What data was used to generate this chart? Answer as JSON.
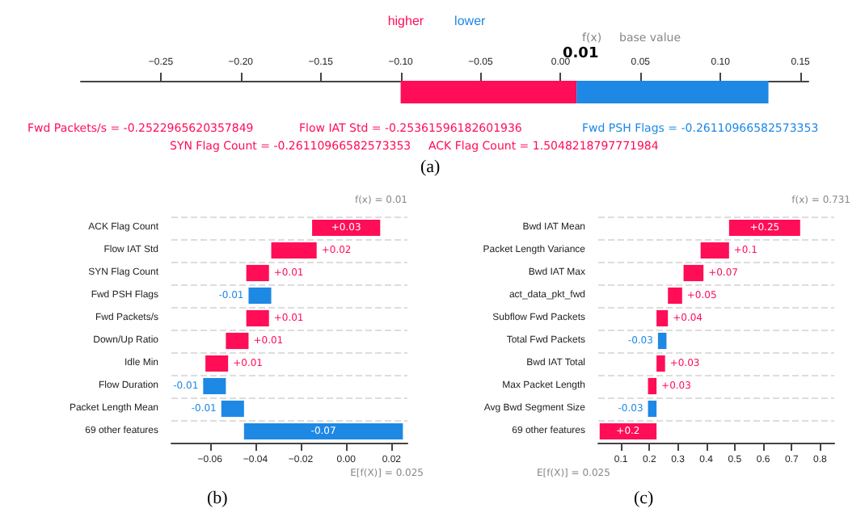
{
  "chart_data": [
    {
      "type": "bar",
      "orientation": "horizontal",
      "categories": [
        null
      ],
      "xlim": [
        -0.3,
        0.155
      ],
      "xticks": [
        {
          "value": -0.25,
          "label": "−0.25"
        },
        {
          "value": -0.2,
          "label": "−0.20"
        },
        {
          "value": -0.15,
          "label": "−0.15"
        },
        {
          "value": -0.1,
          "label": "−0.10"
        },
        {
          "value": -0.05,
          "label": "−0.05"
        },
        {
          "value": 0,
          "label": "0.00"
        },
        {
          "value": 0.05,
          "label": "0.05"
        },
        {
          "value": 0.1,
          "label": "0.10"
        },
        {
          "value": 0.15,
          "label": "0.15"
        }
      ],
      "series": [
        {
          "name": "higher",
          "color": "#ff0d57",
          "values": [
            0.11
          ],
          "base": [
            -0.1
          ]
        },
        {
          "name": "lower",
          "color": "#1e88e5",
          "values": [
            0.12
          ],
          "base": [
            0.01
          ]
        }
      ],
      "legend": "top",
      "annotations": [
        "f(x)",
        "base value",
        "0.01",
        "Fwd Packets/s = -0.2522965620357849",
        "SYN Flag Count = -0.26110966582573353",
        "Flow IAT Std = -0.25361596182601936",
        "ACK Flag Count = 1.5048218797771984",
        "Fwd PSH Flags = -0.26110966582573353",
        "(a)"
      ]
    },
    {
      "type": "bar",
      "orientation": "horizontal",
      "categories": [
        "ACK Flag Count",
        "Flow IAT Std",
        "SYN Flag Count",
        "Fwd PSH Flags",
        "Fwd Packets/s",
        "Down/Up Ratio",
        "Idle Min",
        "Flow Duration",
        "Packet Length Mean",
        "69 other features"
      ],
      "values": [
        0.03,
        0.02,
        0.01,
        -0.01,
        0.01,
        0.01,
        0.01,
        -0.01,
        -0.01,
        -0.07
      ],
      "base": [
        -0.015,
        -0.033,
        -0.044,
        -0.033,
        -0.044,
        -0.053,
        -0.062,
        -0.053,
        -0.045,
        0.025
      ],
      "colors": [
        "#ff0d57",
        "#ff0d57",
        "#ff0d57",
        "#1e88e5",
        "#ff0d57",
        "#ff0d57",
        "#ff0d57",
        "#1e88e5",
        "#1e88e5",
        "#1e88e5"
      ],
      "value_labels": [
        "+0.03",
        "+0.02",
        "+0.01",
        "-0.01",
        "+0.01",
        "+0.01",
        "+0.01",
        "-0.01",
        "-0.01",
        "-0.07"
      ],
      "xlim": [
        -0.077,
        0.027
      ],
      "xticks": [
        {
          "value": -0.06,
          "label": "−0.06"
        },
        {
          "value": -0.04,
          "label": "−0.04"
        },
        {
          "value": -0.02,
          "label": "−0.02"
        },
        {
          "value": 0,
          "label": "0.00"
        },
        {
          "value": 0.02,
          "label": "0.02"
        }
      ],
      "grid": "y",
      "annotations": [
        "f(x) = 0.01",
        "E[f(X)] = 0.025",
        "(b)"
      ]
    },
    {
      "type": "bar",
      "orientation": "horizontal",
      "categories": [
        "Bwd IAT Mean",
        "Packet Length Variance",
        "Bwd IAT Max",
        "act_data_pkt_fwd",
        "Subflow Fwd Packets",
        "Total Fwd Packets",
        "Bwd IAT Total",
        "Max Packet Length",
        "Avg Bwd Segment Size",
        "69 other features"
      ],
      "values": [
        0.25,
        0.1,
        0.07,
        0.05,
        0.04,
        -0.03,
        0.03,
        0.03,
        -0.03,
        0.2
      ],
      "base": [
        0.48,
        0.38,
        0.32,
        0.265,
        0.225,
        0.26,
        0.225,
        0.195,
        0.225,
        0.025
      ],
      "colors": [
        "#ff0d57",
        "#ff0d57",
        "#ff0d57",
        "#ff0d57",
        "#ff0d57",
        "#1e88e5",
        "#ff0d57",
        "#ff0d57",
        "#1e88e5",
        "#ff0d57"
      ],
      "value_labels": [
        "+0.25",
        "+0.1",
        "+0.07",
        "+0.05",
        "+0.04",
        "-0.03",
        "+0.03",
        "+0.03",
        "-0.03",
        "+0.2"
      ],
      "xlim": [
        0.02,
        0.85
      ],
      "xticks": [
        0.1,
        0.2,
        0.3,
        0.4,
        0.5,
        0.6,
        0.7,
        0.8
      ],
      "grid": "y",
      "annotations": [
        "f(x) = 0.731",
        "E[f(X)] = 0.025",
        "(c)"
      ]
    }
  ]
}
